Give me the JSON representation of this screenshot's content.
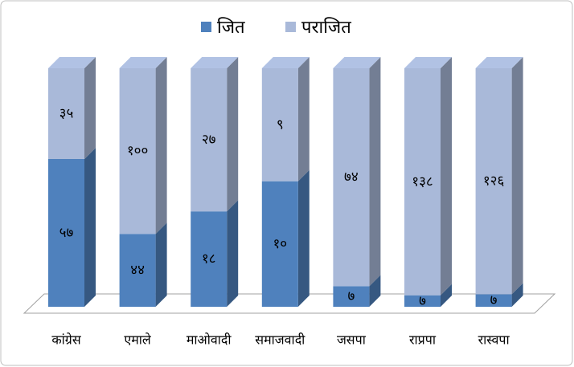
{
  "chart_data": {
    "type": "bar",
    "stacked": "percent",
    "categories": [
      "कांग्रेस",
      "एमाले",
      "माओवादी",
      "समाजवादी",
      "जसपा",
      "राप्रपा",
      "रास्वपा"
    ],
    "series": [
      {
        "name": "जित",
        "color": "#4f81bd",
        "values": [
          57,
          44,
          18,
          10,
          7,
          7,
          7
        ],
        "value_labels": [
          "५७",
          "४४",
          "१८",
          "१०",
          "७",
          "७",
          "७"
        ]
      },
      {
        "name": "पराजित",
        "color": "#a9b9d9",
        "values": [
          35,
          100,
          27,
          9,
          74,
          138,
          126
        ],
        "value_labels": [
          "३५",
          "१००",
          "२७",
          "९",
          "७४",
          "१३८",
          "१२६"
        ]
      }
    ],
    "legend": "top"
  }
}
